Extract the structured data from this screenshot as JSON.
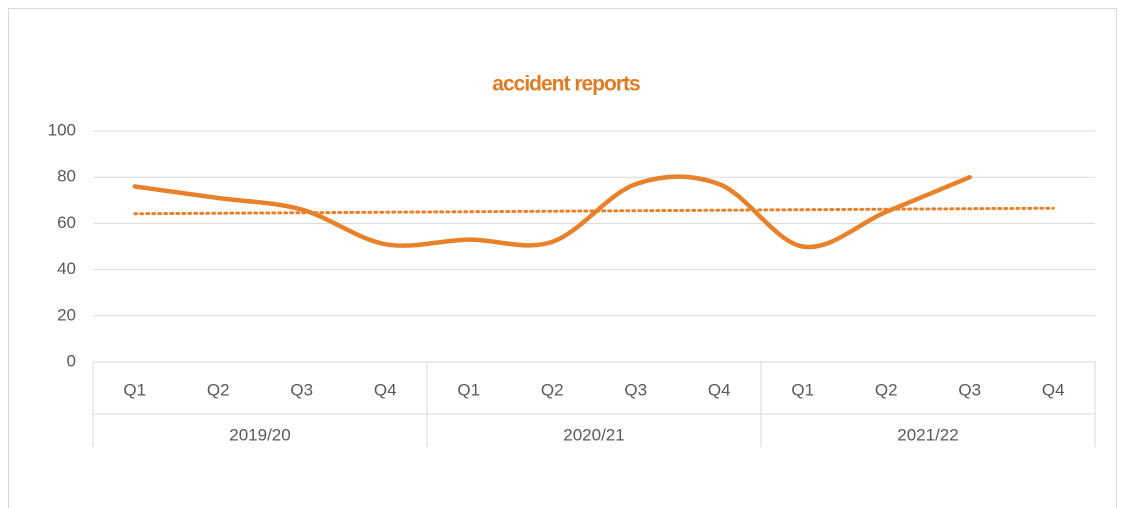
{
  "chart_data": {
    "type": "line",
    "title": "accident reports",
    "groups": [
      {
        "label": "2019/20",
        "categories": [
          "Q1",
          "Q2",
          "Q3",
          "Q4"
        ]
      },
      {
        "label": "2020/21",
        "categories": [
          "Q1",
          "Q2",
          "Q3",
          "Q4"
        ]
      },
      {
        "label": "2021/22",
        "categories": [
          "Q1",
          "Q2",
          "Q3",
          "Q4"
        ]
      }
    ],
    "series": [
      {
        "name": "accident reports",
        "color": "#e8822a",
        "smooth": true,
        "trendline": "linear",
        "values": [
          76,
          71,
          66,
          51,
          53,
          52,
          77,
          77,
          50,
          65,
          80,
          null
        ]
      }
    ],
    "ylim": [
      0,
      100
    ],
    "yticks": [
      0,
      20,
      40,
      60,
      80,
      100
    ],
    "grid": true
  }
}
